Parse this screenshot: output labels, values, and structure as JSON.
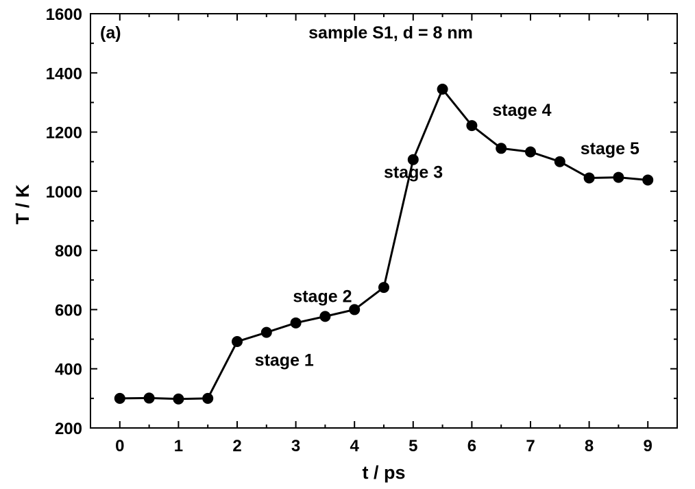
{
  "chart_data": {
    "type": "line",
    "panel_label": "(a)",
    "title": "sample S1, d = 8 nm",
    "xlabel": "t / ps",
    "ylabel": "T / K",
    "xlim": [
      -0.5,
      9.5
    ],
    "ylim": [
      200,
      1600
    ],
    "xticks": [
      0,
      1,
      2,
      3,
      4,
      5,
      6,
      7,
      8,
      9
    ],
    "yticks": [
      200,
      400,
      600,
      800,
      1000,
      1200,
      1400,
      1600
    ],
    "grid": false,
    "legend": "none",
    "series": [
      {
        "x": [
          0,
          0.5,
          1,
          1.5,
          2,
          2.5,
          3,
          3.5,
          4,
          4.5,
          5,
          5.5,
          6,
          6.5,
          7,
          7.5,
          8,
          8.5,
          9
        ],
        "y": [
          300,
          301,
          298,
          300,
          492,
          523,
          555,
          577,
          600,
          675,
          1107,
          1345,
          1222,
          1145,
          1133,
          1100,
          1045,
          1047,
          1038
        ],
        "color": "#000000",
        "marker": "filled-circle"
      }
    ],
    "annotations": [
      {
        "text": "stage 1",
        "x": 2.3,
        "y": 410
      },
      {
        "text": "stage 2",
        "x": 2.95,
        "y": 625
      },
      {
        "text": "stage 3",
        "x": 4.5,
        "y": 1045
      },
      {
        "text": "stage 4",
        "x": 6.35,
        "y": 1255
      },
      {
        "text": "stage 5",
        "x": 7.85,
        "y": 1125
      }
    ]
  }
}
